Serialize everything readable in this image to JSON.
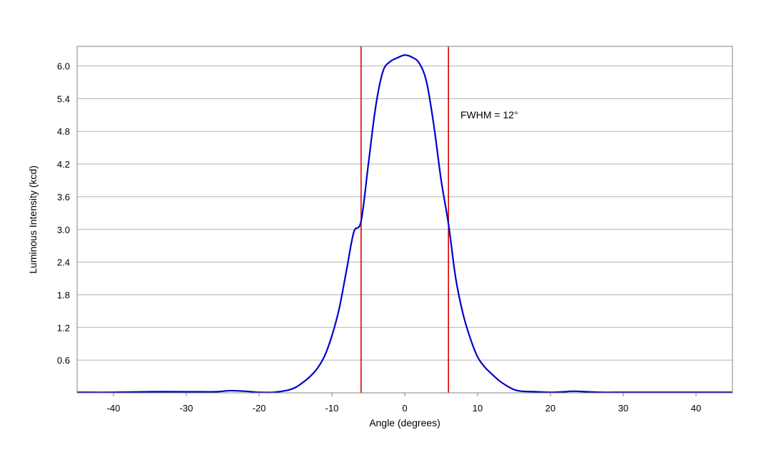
{
  "chart_data": {
    "type": "line",
    "xlabel": "Angle (degrees)",
    "ylabel": "Luminous Intensity (kcd)",
    "xlim": [
      -45,
      45
    ],
    "ylim": [
      0,
      6.36
    ],
    "x_ticks": [
      -40,
      -30,
      -20,
      -10,
      0,
      10,
      20,
      30,
      40
    ],
    "x_tick_labels": [
      "-40",
      "-30",
      "-20",
      "-10",
      "0",
      "10",
      "20",
      "30",
      "40"
    ],
    "y_ticks": [
      0.6,
      1.2,
      1.8,
      2.4,
      3.0,
      3.6,
      4.2,
      4.8,
      5.4,
      6.0
    ],
    "y_tick_labels": [
      "0.6",
      "1.2",
      "1.8",
      "2.4",
      "3.0",
      "3.6",
      "4.2",
      "4.8",
      "5.4",
      "6.0"
    ],
    "grid": "horizontal",
    "series": [
      {
        "color": "#0000cc",
        "x": [
          -45,
          -40,
          -35,
          -30,
          -26,
          -24,
          -22,
          -20,
          -18,
          -16,
          -15,
          -14,
          -13,
          -12,
          -11,
          -10,
          -9,
          -8,
          -7,
          -6,
          -5,
          -4,
          -3,
          -2,
          -1,
          0,
          1,
          2,
          3,
          4,
          5,
          6,
          7,
          8,
          9,
          10,
          11,
          12,
          13,
          14,
          15,
          16,
          18,
          20,
          22,
          23,
          25,
          27,
          30,
          35,
          40,
          45
        ],
        "values": [
          0.01,
          0.01,
          0.02,
          0.02,
          0.02,
          0.04,
          0.03,
          0.01,
          0.01,
          0.05,
          0.1,
          0.19,
          0.3,
          0.45,
          0.68,
          1.05,
          1.55,
          2.25,
          2.95,
          3.15,
          4.2,
          5.25,
          5.9,
          6.08,
          6.15,
          6.2,
          6.16,
          6.05,
          5.7,
          4.9,
          3.9,
          3.1,
          2.1,
          1.45,
          1.0,
          0.66,
          0.47,
          0.34,
          0.22,
          0.13,
          0.06,
          0.03,
          0.02,
          0.01,
          0.02,
          0.03,
          0.02,
          0.01,
          0.01,
          0.01,
          0.01,
          0.01
        ]
      }
    ],
    "markers": [
      {
        "x": -6,
        "color": "#dd0000"
      },
      {
        "x": 6,
        "color": "#dd0000"
      }
    ],
    "annotation": "FWHM = 12°"
  }
}
